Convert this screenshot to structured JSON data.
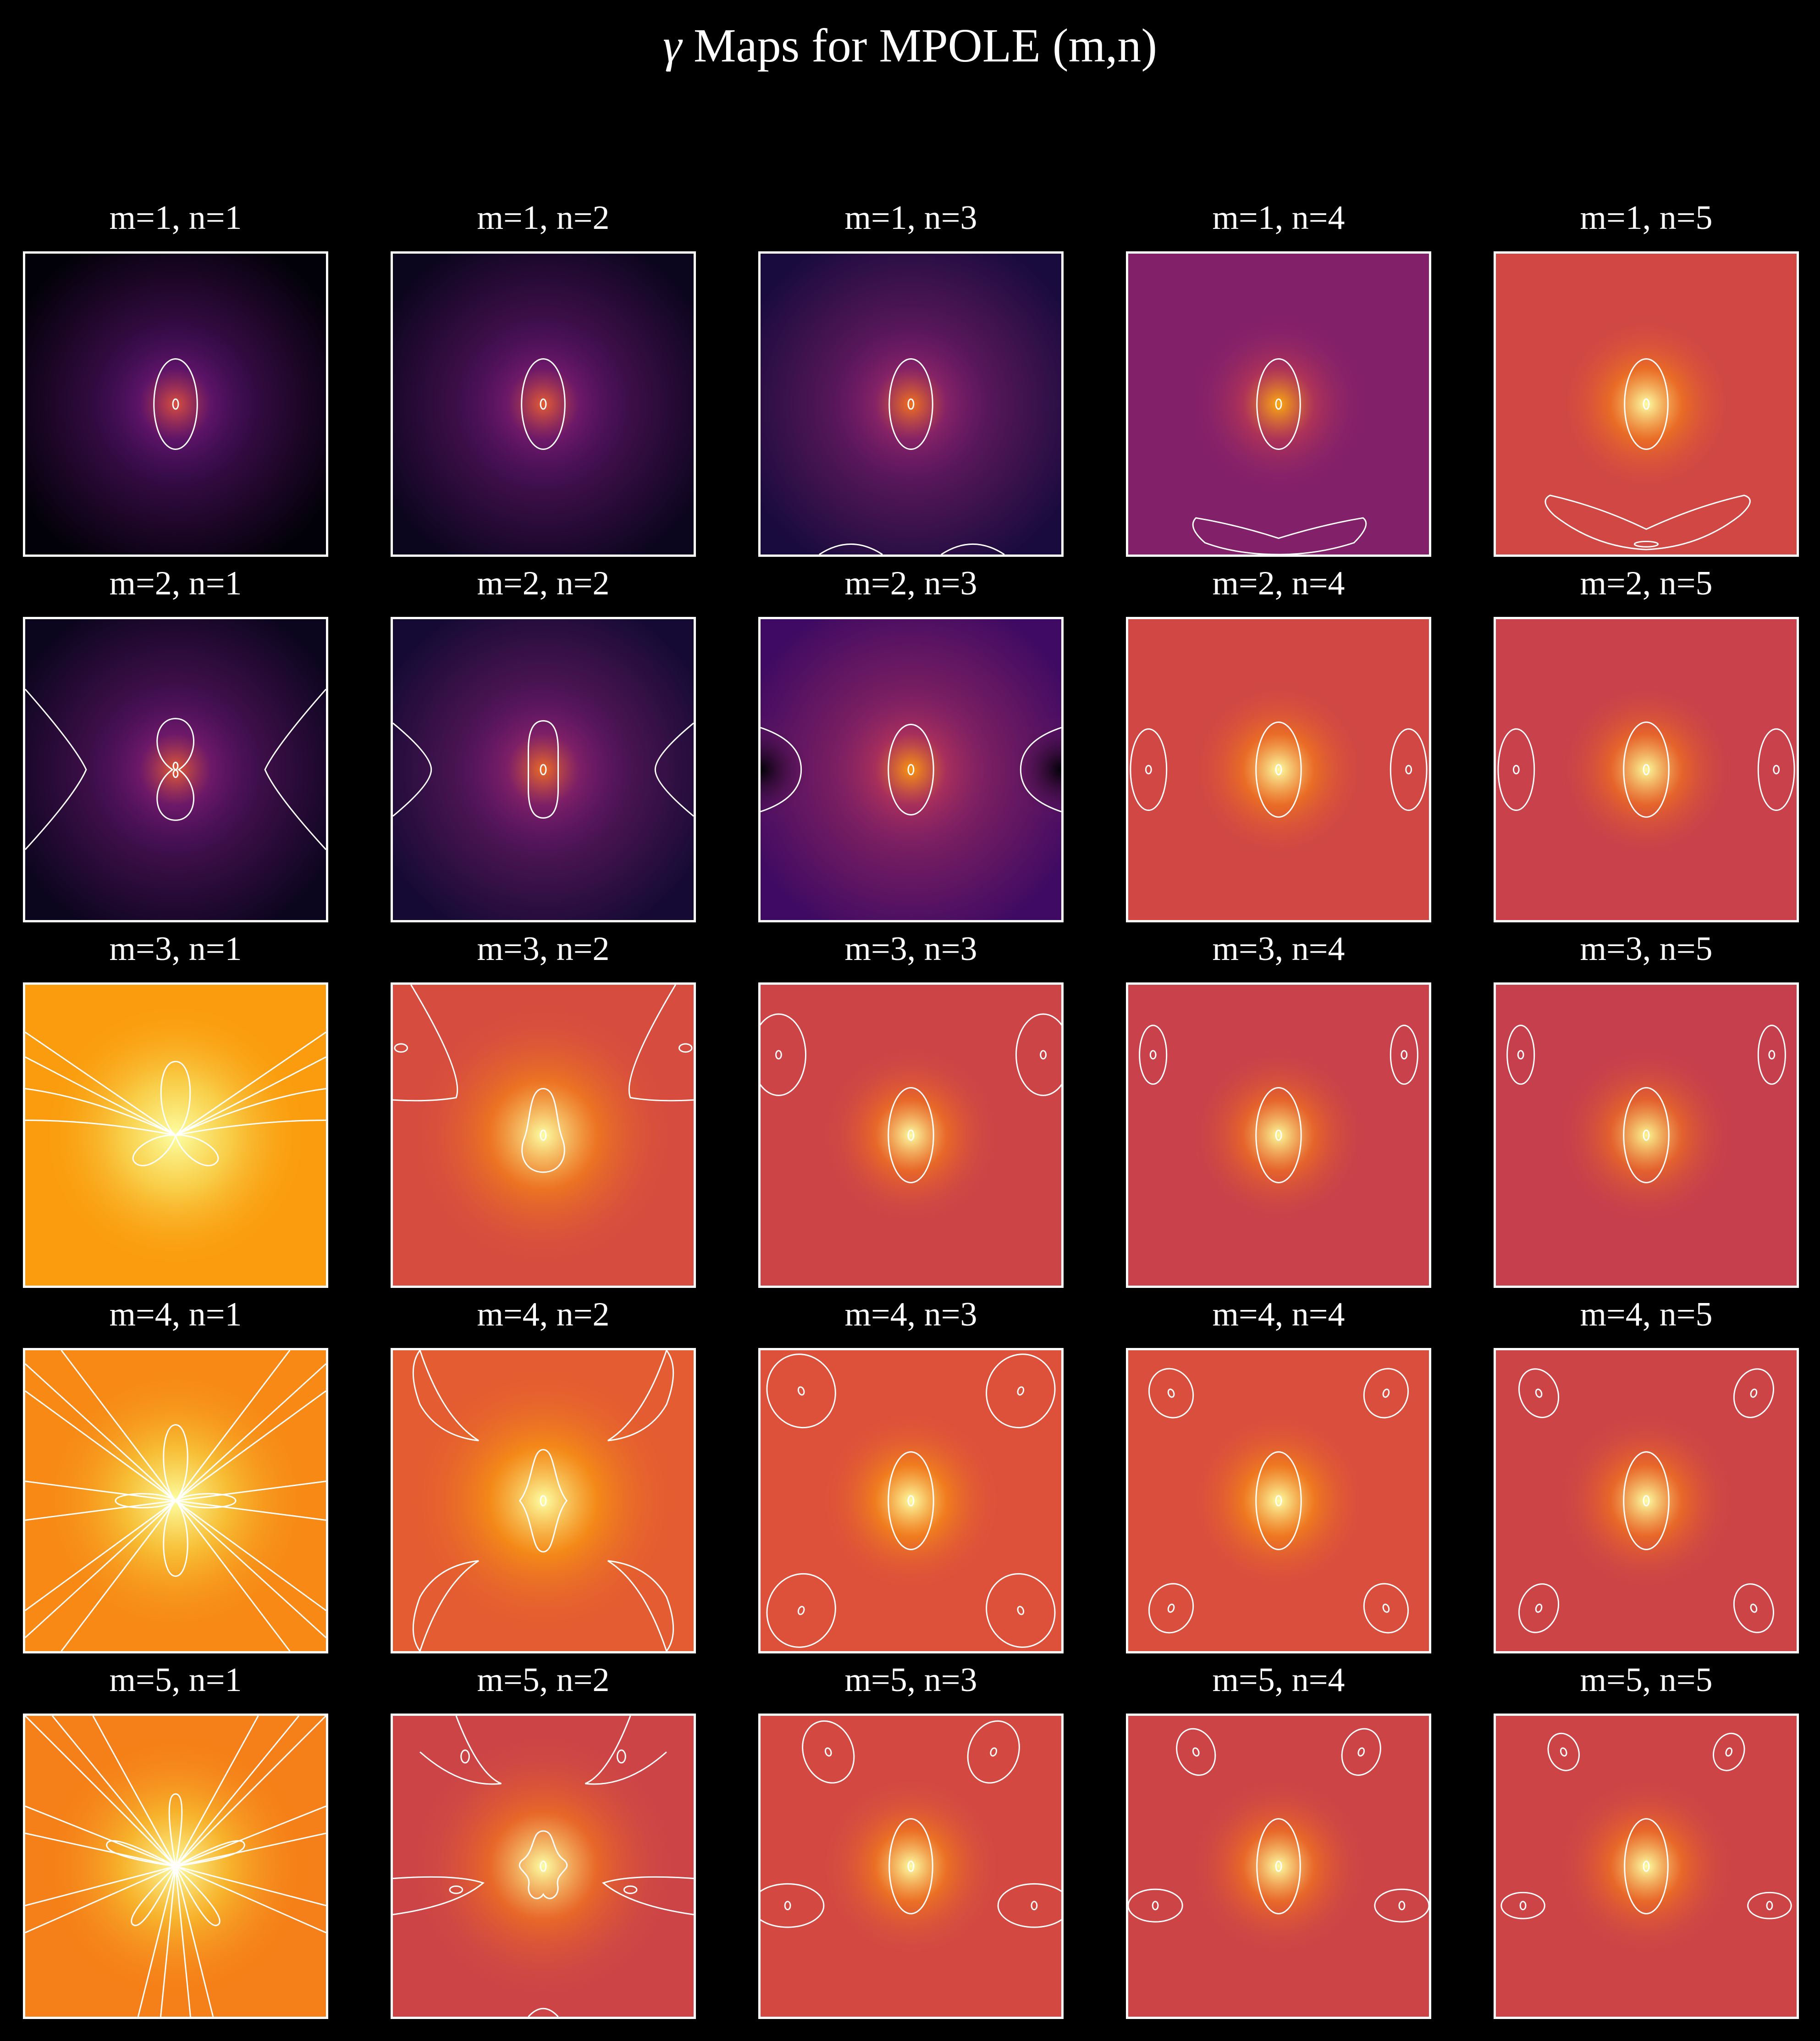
{
  "title": {
    "prefix": "γ",
    "text": "Maps for MPOLE (m,n)"
  },
  "colors": {
    "background": "#000000",
    "frame": "#ffffff",
    "contour": "#ffffff",
    "colormap": "inferno"
  },
  "chart_data": {
    "type": "heatmap",
    "title": "γ Maps for MPOLE (m,n)",
    "layout": {
      "rows": 5,
      "cols": 5
    },
    "axes_visible": false,
    "colormap": "inferno",
    "panels": [
      {
        "m": 1,
        "n": 1,
        "label": "m=1, n=1",
        "background_tone": 0.14
      },
      {
        "m": 1,
        "n": 2,
        "label": "m=1, n=2",
        "background_tone": 0.18
      },
      {
        "m": 1,
        "n": 3,
        "label": "m=1, n=3",
        "background_tone": 0.24
      },
      {
        "m": 1,
        "n": 4,
        "label": "m=1, n=4",
        "background_tone": 0.36
      },
      {
        "m": 1,
        "n": 5,
        "label": "m=1, n=5",
        "background_tone": 0.56
      },
      {
        "m": 2,
        "n": 1,
        "label": "m=2, n=1",
        "background_tone": 0.18
      },
      {
        "m": 2,
        "n": 2,
        "label": "m=2, n=2",
        "background_tone": 0.22
      },
      {
        "m": 2,
        "n": 3,
        "label": "m=2, n=3",
        "background_tone": 0.32
      },
      {
        "m": 2,
        "n": 4,
        "label": "m=2, n=4",
        "background_tone": 0.56
      },
      {
        "m": 2,
        "n": 5,
        "label": "m=2, n=5",
        "background_tone": 0.54
      },
      {
        "m": 3,
        "n": 1,
        "label": "m=3, n=1",
        "background_tone": 0.78
      },
      {
        "m": 3,
        "n": 2,
        "label": "m=3, n=2",
        "background_tone": 0.58
      },
      {
        "m": 3,
        "n": 3,
        "label": "m=3, n=3",
        "background_tone": 0.55
      },
      {
        "m": 3,
        "n": 4,
        "label": "m=3, n=4",
        "background_tone": 0.54
      },
      {
        "m": 3,
        "n": 5,
        "label": "m=3, n=5",
        "background_tone": 0.53
      },
      {
        "m": 4,
        "n": 1,
        "label": "m=4, n=1",
        "background_tone": 0.74
      },
      {
        "m": 4,
        "n": 2,
        "label": "m=4, n=2",
        "background_tone": 0.63
      },
      {
        "m": 4,
        "n": 3,
        "label": "m=4, n=3",
        "background_tone": 0.6
      },
      {
        "m": 4,
        "n": 4,
        "label": "m=4, n=4",
        "background_tone": 0.59
      },
      {
        "m": 4,
        "n": 5,
        "label": "m=4, n=5",
        "background_tone": 0.55
      },
      {
        "m": 5,
        "n": 1,
        "label": "m=5, n=1",
        "background_tone": 0.72
      },
      {
        "m": 5,
        "n": 2,
        "label": "m=5, n=2",
        "background_tone": 0.55
      },
      {
        "m": 5,
        "n": 3,
        "label": "m=5, n=3",
        "background_tone": 0.57
      },
      {
        "m": 5,
        "n": 4,
        "label": "m=5, n=4",
        "background_tone": 0.55
      },
      {
        "m": 5,
        "n": 5,
        "label": "m=5, n=5",
        "background_tone": 0.55
      }
    ]
  }
}
